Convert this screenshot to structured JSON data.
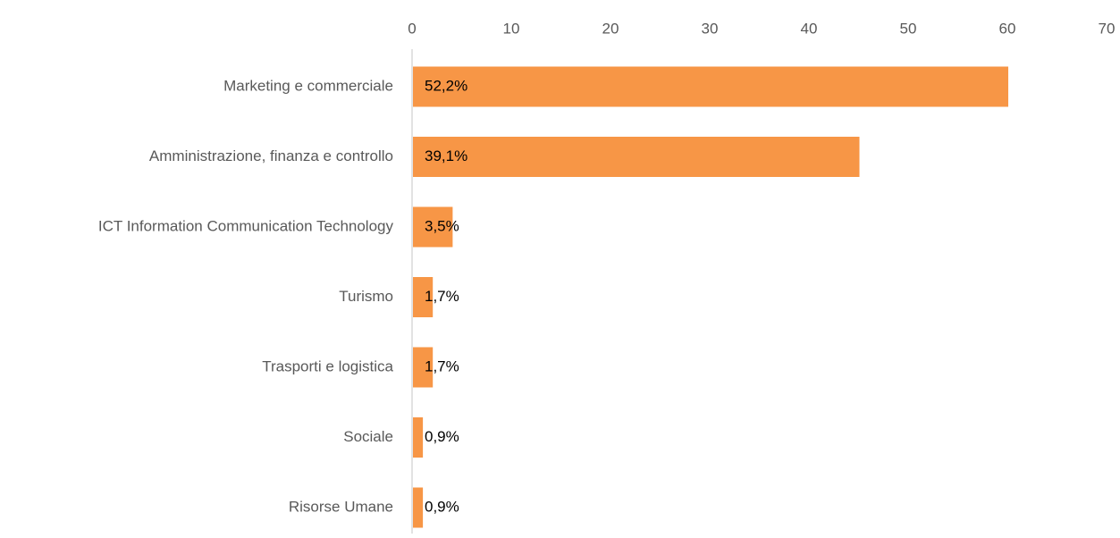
{
  "chart_data": {
    "type": "bar",
    "orientation": "horizontal",
    "categories": [
      "Marketing e commerciale",
      "Amministrazione, finanza e controllo",
      "ICT Information Communication Technology",
      "Turismo",
      "Trasporti e logistica",
      "Sociale",
      "Risorse Umane"
    ],
    "values": [
      60,
      45,
      4,
      2,
      2,
      1,
      1
    ],
    "data_labels": [
      "52,2%",
      "39,1%",
      "3,5%",
      "1,7%",
      "1,7%",
      "0,9%",
      "0,9%"
    ],
    "x_ticks": [
      "0",
      "10",
      "20",
      "30",
      "40",
      "50",
      "60",
      "70"
    ],
    "xlim": [
      0,
      70
    ],
    "x_axis_position": "top",
    "grid": false,
    "legend": "none",
    "title": "",
    "xlabel": "",
    "ylabel": "",
    "colors": {
      "bar": "#F79646",
      "axis_line": "#D9D9D9",
      "tick_text": "#595959",
      "label_text": "#000000"
    }
  }
}
